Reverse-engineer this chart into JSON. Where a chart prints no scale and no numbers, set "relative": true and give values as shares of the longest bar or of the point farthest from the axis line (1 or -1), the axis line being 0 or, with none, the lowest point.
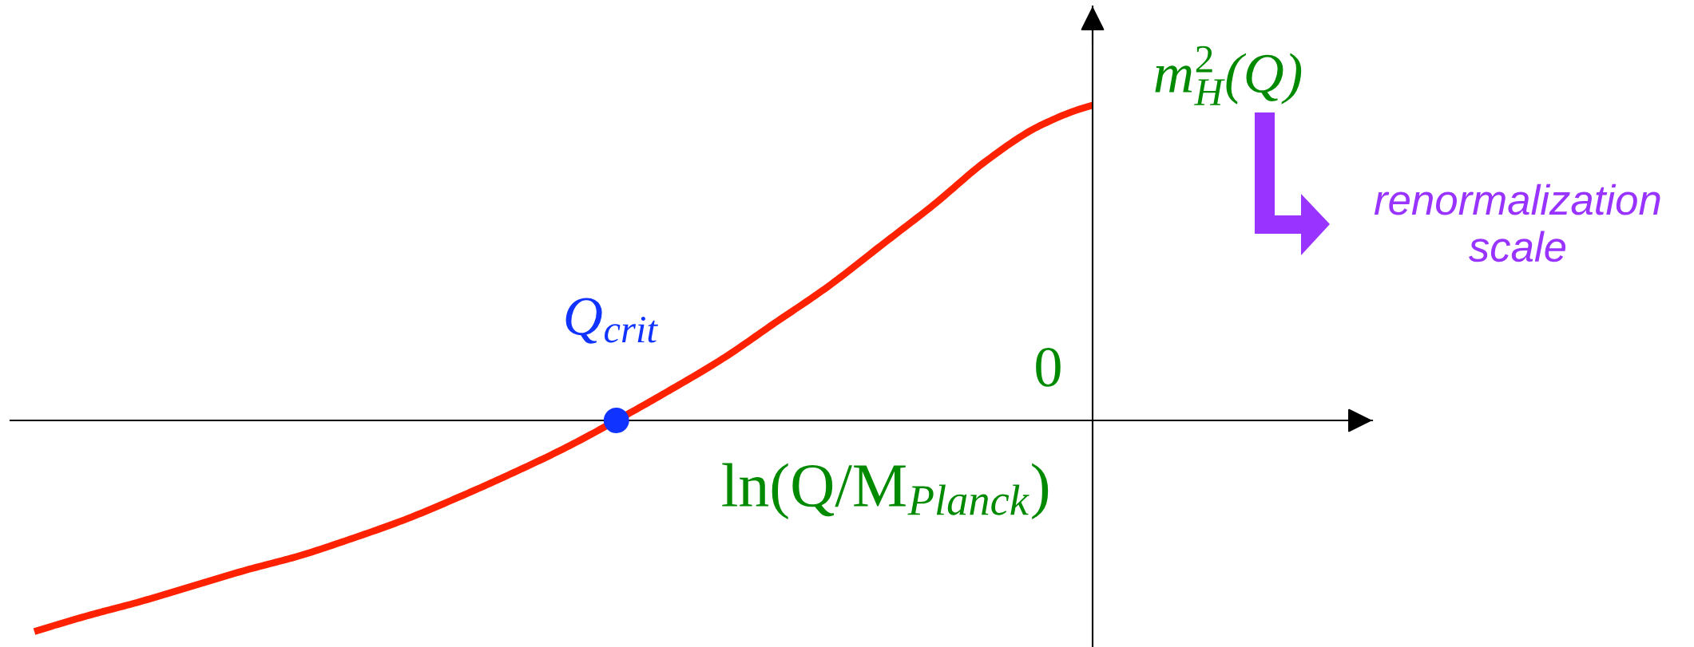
{
  "chart_data": {
    "type": "line",
    "relative": true,
    "xlabel": "ln(Q/M$_{Planck}$)",
    "ylabel": "m$^{2}$$_{H}$(Q)",
    "categories": [
      null,
      null,
      null,
      null,
      null,
      null,
      null,
      null,
      null,
      null,
      null,
      null,
      null,
      null,
      null,
      null,
      null,
      null,
      null,
      null,
      null
    ],
    "series": [
      {
        "color": "#ff2200",
        "values": [
          -0.67,
          -0.62,
          -0.575,
          -0.525,
          -0.475,
          -0.43,
          -0.375,
          -0.315,
          -0.245,
          -0.17,
          -0.09,
          0,
          0.095,
          0.195,
          0.31,
          0.425,
          0.555,
          0.685,
          0.825,
          0.935,
          1
        ]
      },
      {
        "name": "Q$_{crit}$",
        "color": "#1133ff",
        "marker": "circle",
        "values": [
          null,
          null,
          null,
          null,
          null,
          null,
          null,
          null,
          null,
          null,
          null,
          0,
          null,
          null,
          null,
          null,
          null,
          null,
          null,
          null,
          null
        ]
      }
    ],
    "annotations": [
      "0",
      "renormalization\nscale"
    ]
  }
}
